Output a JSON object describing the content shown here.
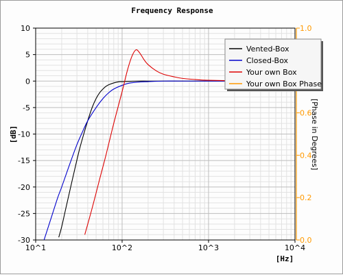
{
  "colors": {
    "vented": "#000000",
    "closed": "#0000cc",
    "own": "#dd0000",
    "phase": "#ff9900",
    "grid_major": "#bdbdbd",
    "grid_minor": "#e2e2e2"
  },
  "chart_data": {
    "type": "line",
    "title": "Frequency Response",
    "xlabel": "[Hz]",
    "ylabel": "[dB]",
    "y2label": "[Phase in Degrees]",
    "xscale": "log",
    "xlim": [
      10,
      10000
    ],
    "ylim": [
      -30,
      10
    ],
    "y2lim": [
      0,
      1
    ],
    "grid": true,
    "legend_position": "top-right",
    "x_tick_labels": [
      "10^1",
      "10^2",
      "10^3",
      "10^4"
    ],
    "y_tick_labels": [
      "10",
      "5",
      "0",
      "-5",
      "-10",
      "-15",
      "-20",
      "-25",
      "-30"
    ],
    "y2_tick_labels": [
      "1.0",
      "0.8",
      "0.6",
      "0.4",
      "0.2",
      "0.0"
    ],
    "series": [
      {
        "name": "Vented-Box",
        "color": "#000000",
        "x": [
          18.5,
          20,
          22,
          25,
          28,
          32,
          36,
          40,
          45,
          50,
          55,
          60,
          65,
          70,
          80,
          90,
          100,
          120,
          150,
          200,
          300,
          500,
          1000,
          3000
        ],
        "y": [
          -29.5,
          -27.5,
          -24.5,
          -20.5,
          -17,
          -13,
          -10,
          -7.5,
          -5,
          -3.3,
          -2.2,
          -1.5,
          -1.0,
          -0.7,
          -0.35,
          -0.15,
          -0.1,
          -0.05,
          0,
          0,
          0,
          0,
          0,
          0
        ]
      },
      {
        "name": "Closed-Box",
        "color": "#0000cc",
        "x": [
          12.5,
          15,
          18,
          20,
          25,
          30,
          35,
          40,
          50,
          60,
          70,
          80,
          100,
          120,
          150,
          200,
          300,
          500,
          1000,
          3000
        ],
        "y": [
          -30,
          -26,
          -22,
          -20,
          -15.5,
          -12,
          -9.5,
          -7.5,
          -5,
          -3.3,
          -2.2,
          -1.5,
          -0.8,
          -0.4,
          -0.2,
          -0.1,
          0,
          0,
          0,
          0
        ]
      },
      {
        "name": "Your own Box",
        "color": "#dd0000",
        "x": [
          37,
          45,
          55,
          65,
          80,
          100,
          115,
          130,
          145,
          160,
          180,
          200,
          250,
          300,
          400,
          500,
          700,
          1000,
          3000
        ],
        "y": [
          -29,
          -24,
          -18.5,
          -14,
          -8,
          -2,
          2,
          4.7,
          5.9,
          5.3,
          4,
          3.1,
          1.9,
          1.3,
          0.8,
          0.5,
          0.3,
          0.15,
          0
        ]
      },
      {
        "name": "Your own Box Phase",
        "color": "#ff9900",
        "x": [],
        "y": []
      }
    ]
  }
}
